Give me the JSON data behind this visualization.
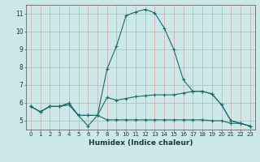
{
  "xlabel": "Humidex (Indice chaleur)",
  "ylabel": "",
  "bg_color": "#cce8e8",
  "grid_color": "#d4b8b8",
  "line_color": "#1a6b6b",
  "xlim": [
    -0.5,
    23.5
  ],
  "ylim": [
    4.5,
    11.5
  ],
  "xticks": [
    0,
    1,
    2,
    3,
    4,
    5,
    6,
    7,
    8,
    9,
    10,
    11,
    12,
    13,
    14,
    15,
    16,
    17,
    18,
    19,
    20,
    21,
    22,
    23
  ],
  "yticks": [
    5,
    6,
    7,
    8,
    9,
    10,
    11
  ],
  "line1_x": [
    0,
    1,
    2,
    3,
    4,
    5,
    6,
    7,
    8,
    9,
    10,
    11,
    12,
    13,
    14,
    15,
    16,
    17,
    18,
    19,
    20,
    21,
    22,
    23
  ],
  "line1_y": [
    5.8,
    5.5,
    5.8,
    5.8,
    6.0,
    5.3,
    4.7,
    5.3,
    7.9,
    9.2,
    10.9,
    11.1,
    11.25,
    11.05,
    10.2,
    9.0,
    7.3,
    6.65,
    6.65,
    6.5,
    5.9,
    5.0,
    4.85,
    4.7
  ],
  "line2_x": [
    0,
    1,
    2,
    3,
    4,
    5,
    6,
    7,
    8,
    9,
    10,
    11,
    12,
    13,
    14,
    15,
    16,
    17,
    18,
    19,
    20,
    21,
    22,
    23
  ],
  "line2_y": [
    5.8,
    5.5,
    5.8,
    5.8,
    5.9,
    5.3,
    5.3,
    5.3,
    6.3,
    6.15,
    6.25,
    6.35,
    6.4,
    6.45,
    6.45,
    6.45,
    6.55,
    6.65,
    6.65,
    6.5,
    5.9,
    5.0,
    4.85,
    4.7
  ],
  "line3_x": [
    0,
    1,
    2,
    3,
    4,
    5,
    6,
    7,
    8,
    9,
    10,
    11,
    12,
    13,
    14,
    15,
    16,
    17,
    18,
    19,
    20,
    21,
    22,
    23
  ],
  "line3_y": [
    5.8,
    5.5,
    5.8,
    5.8,
    5.9,
    5.3,
    5.3,
    5.3,
    5.05,
    5.05,
    5.05,
    5.05,
    5.05,
    5.05,
    5.05,
    5.05,
    5.05,
    5.05,
    5.05,
    5.0,
    5.0,
    4.85,
    4.85,
    4.7
  ]
}
